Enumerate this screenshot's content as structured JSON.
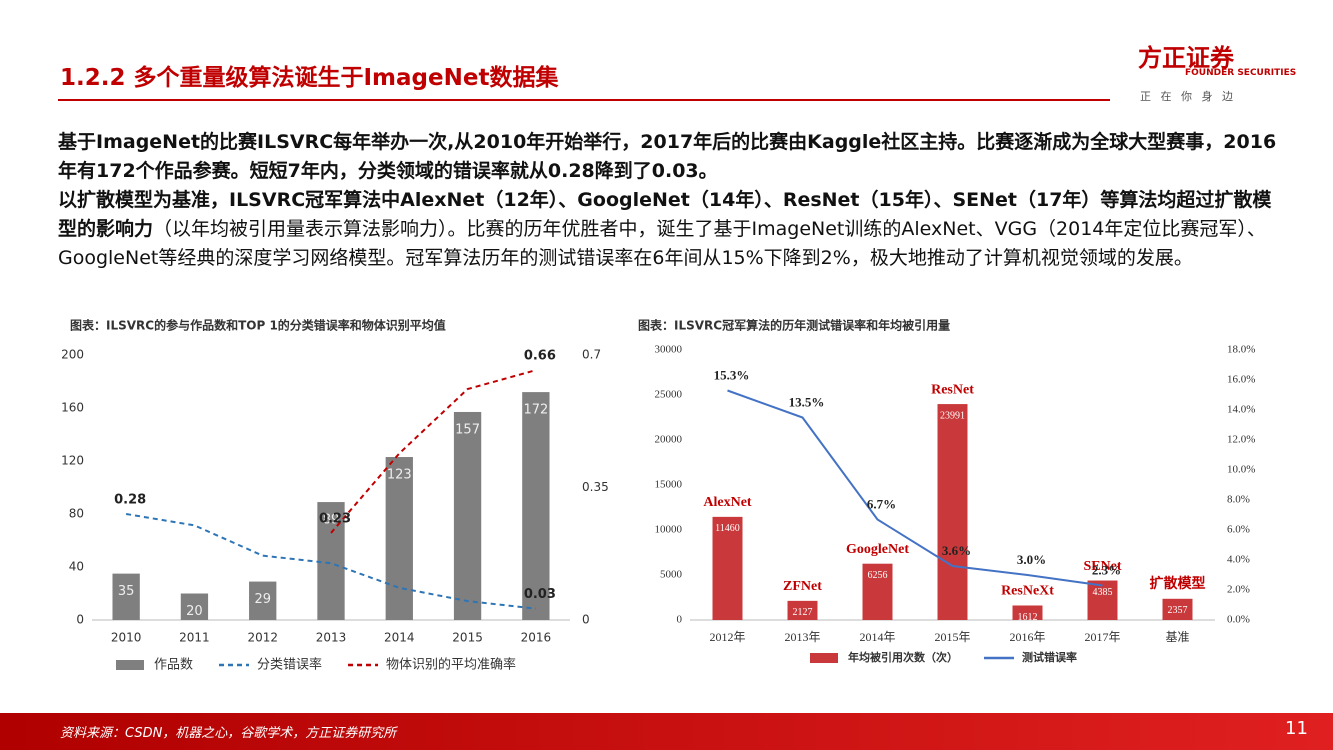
{
  "header": {
    "title": "1.2.2 多个重量级算法诞生于ImageNet数据集",
    "logo_name": "方正证券",
    "logo_en": "FOUNDER SECURITIES",
    "slogan": "正 在 你 身 边"
  },
  "body": {
    "paragraph_1": "基于ImageNet的比赛ILSVRC每年举办一次,从2010年开始举行，2017年后的比赛由Kaggle社区主持。比赛逐渐成为全球大型赛事，2016年有172个作品参赛。短短7年内，分类领域的错误率就从0.28降到了0.03。",
    "paragraph_2_bold": "以扩散模型为基准，ILSVRC冠军算法中AlexNet（12年）、GoogleNet（14年）、ResNet（15年）、SENet（17年）等算法均超过扩散模型的影响力",
    "paragraph_2_normal": "（以年均被引用量表示算法影响力）。比赛的历年优胜者中，诞生了基于ImageNet训练的AlexNet、VGG（2014年定位比赛冠军）、GoogleNet等经典的深度学习网络模型。冠军算法历年的测试错误率在6年间从15%下降到2%，极大地推动了计算机视觉领域的发展。"
  },
  "chart_data": [
    {
      "type": "combo",
      "title": "图表：ILSVRC的参与作品数和TOP 1的分类错误率和物体识别平均值",
      "categories": [
        "2010",
        "2011",
        "2012",
        "2013",
        "2014",
        "2015",
        "2016"
      ],
      "ylim": [
        0,
        200
      ],
      "yticks": [
        0,
        40,
        80,
        120,
        160,
        200
      ],
      "y2lim": [
        0,
        0.7
      ],
      "y2ticks": [
        0,
        0.35,
        0.7
      ],
      "series": [
        {
          "name": "作品数",
          "type": "bar",
          "color": "#7f7f7f",
          "values": [
            35,
            20,
            29,
            89,
            123,
            157,
            172
          ]
        },
        {
          "name": "分类错误率",
          "type": "line",
          "style": "dashed",
          "axis": "y2",
          "color": "#2e75b6",
          "values": [
            0.28,
            0.25,
            0.17,
            0.15,
            0.085,
            0.05,
            0.03
          ],
          "value_labels": [
            "0.28",
            null,
            null,
            null,
            null,
            null,
            "0.03"
          ]
        },
        {
          "name": "物体识别的平均准确率",
          "type": "line",
          "style": "dashed",
          "axis": "y2",
          "color": "#c00000",
          "values": [
            null,
            null,
            null,
            0.23,
            0.44,
            0.61,
            0.66
          ],
          "value_labels": [
            null,
            null,
            null,
            "0.23",
            null,
            null,
            "0.66"
          ]
        }
      ]
    },
    {
      "type": "combo",
      "title": "图表：ILSVRC冠军算法的历年测试错误率和年均被引用量",
      "categories": [
        "2012年",
        "2013年",
        "2014年",
        "2015年",
        "2016年",
        "2017年",
        "基准"
      ],
      "annotations": [
        "AlexNet",
        "ZFNet",
        "GoogleNet",
        "ResNet",
        "ResNeXt",
        "SENet",
        "扩散模型"
      ],
      "ylim": [
        0,
        30000
      ],
      "yticks": [
        0,
        5000,
        10000,
        15000,
        20000,
        25000,
        30000
      ],
      "y2lim": [
        0,
        18
      ],
      "y2ticks": [
        {
          "value": 0,
          "label": "0.0%"
        },
        {
          "value": 2,
          "label": "2.0%"
        },
        {
          "value": 4,
          "label": "4.0%"
        },
        {
          "value": 6,
          "label": "6.0%"
        },
        {
          "value": 8,
          "label": "8.0%"
        },
        {
          "value": 10,
          "label": "10.0%"
        },
        {
          "value": 12,
          "label": "12.0%"
        },
        {
          "value": 14,
          "label": "14.0%"
        },
        {
          "value": 16,
          "label": "16.0%"
        },
        {
          "value": 18,
          "label": "18.0%"
        }
      ],
      "series": [
        {
          "name": "年均被引用次数（次）",
          "type": "bar",
          "color": "#c9383a",
          "values": [
            11460,
            2127,
            6256,
            23991,
            1612,
            4385,
            2357
          ]
        },
        {
          "name": "测试错误率",
          "type": "line",
          "style": "solid",
          "axis": "y2",
          "color": "#4472c4",
          "values": [
            15.3,
            13.5,
            6.7,
            3.6,
            3.0,
            2.3,
            null
          ],
          "value_labels": [
            "15.3%",
            "13.5%",
            "6.7%",
            "3.6%",
            "3.0%",
            "2.3%",
            null
          ]
        }
      ]
    }
  ],
  "footer": {
    "source": "资料来源：CSDN，机器之心，谷歌学术，方正证券研究所",
    "page": "11"
  }
}
